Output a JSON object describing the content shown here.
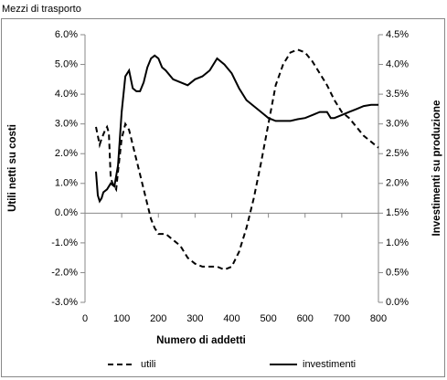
{
  "chart_data": {
    "type": "line",
    "title": "Mezzi di trasporto",
    "x_label": "Numero di addetti",
    "y_label": "Utili netti su costi",
    "y2_label": "Investimenti su produzione",
    "xlim": [
      0,
      800
    ],
    "xticks": [
      0,
      100,
      200,
      300,
      400,
      500,
      600,
      700,
      800
    ],
    "ylim": [
      -3,
      6
    ],
    "yticks": [
      {
        "value": -3,
        "label": "-3.0%"
      },
      {
        "value": -2,
        "label": "-2.0%"
      },
      {
        "value": -1,
        "label": "-1.0%"
      },
      {
        "value": 0,
        "label": "0.0%"
      },
      {
        "value": 1,
        "label": "1.0%"
      },
      {
        "value": 2,
        "label": "2.0%"
      },
      {
        "value": 3,
        "label": "3.0%"
      },
      {
        "value": 4,
        "label": "4.0%"
      },
      {
        "value": 5,
        "label": "5.0%"
      },
      {
        "value": 6,
        "label": "6.0%"
      }
    ],
    "y2lim": [
      0,
      4.5
    ],
    "y2ticks": [
      {
        "value": 0,
        "label": "0.0%"
      },
      {
        "value": 0.5,
        "label": "0.5%"
      },
      {
        "value": 1,
        "label": "1.0%"
      },
      {
        "value": 1.5,
        "label": "1.5%"
      },
      {
        "value": 2,
        "label": "2.0%"
      },
      {
        "value": 2.5,
        "label": "2.5%"
      },
      {
        "value": 3,
        "label": "3.0%"
      },
      {
        "value": 3.5,
        "label": "3.5%"
      },
      {
        "value": 4,
        "label": "4.0%"
      },
      {
        "value": 4.5,
        "label": "4.5%"
      }
    ],
    "legend": "bottom",
    "series": [
      {
        "name": "utili",
        "color": "#000000",
        "line_style": "dashed",
        "x": [
          30,
          35,
          40,
          45,
          55,
          60,
          65,
          70,
          75,
          85,
          90,
          100,
          110,
          120,
          130,
          140,
          150,
          160,
          170,
          180,
          190,
          200,
          220,
          240,
          260,
          280,
          300,
          320,
          340,
          360,
          380,
          400,
          420,
          440,
          460,
          480,
          500,
          520,
          540,
          560,
          580,
          600,
          620,
          640,
          660,
          680,
          700,
          720,
          740,
          760,
          780,
          800
        ],
        "values": [
          2.9,
          2.6,
          2.3,
          2.5,
          2.8,
          2.9,
          2.7,
          1.2,
          1.0,
          0.8,
          1.4,
          2.5,
          3.0,
          2.8,
          2.3,
          1.8,
          1.3,
          0.8,
          0.3,
          -0.2,
          -0.5,
          -0.7,
          -0.7,
          -0.9,
          -1.1,
          -1.5,
          -1.7,
          -1.8,
          -1.8,
          -1.8,
          -1.9,
          -1.8,
          -1.3,
          -0.5,
          0.5,
          1.7,
          3.0,
          4.3,
          5.0,
          5.4,
          5.5,
          5.4,
          5.1,
          4.7,
          4.3,
          3.8,
          3.4,
          3.2,
          2.9,
          2.6,
          2.4,
          2.2
        ]
      },
      {
        "name": "investimenti",
        "color": "#000000",
        "line_style": "solid",
        "axis": "y2",
        "x": [
          30,
          35,
          40,
          45,
          50,
          60,
          70,
          80,
          90,
          100,
          110,
          120,
          130,
          140,
          150,
          160,
          170,
          180,
          190,
          200,
          210,
          220,
          240,
          260,
          280,
          300,
          320,
          340,
          350,
          360,
          380,
          400,
          420,
          440,
          460,
          480,
          500,
          520,
          540,
          560,
          580,
          600,
          620,
          640,
          660,
          670,
          680,
          700,
          720,
          740,
          760,
          780,
          800
        ],
        "values": [
          2.2,
          1.8,
          1.7,
          1.75,
          1.85,
          1.9,
          2.0,
          1.95,
          2.3,
          3.2,
          3.8,
          3.9,
          3.6,
          3.55,
          3.55,
          3.7,
          3.95,
          4.1,
          4.15,
          4.1,
          3.95,
          3.9,
          3.75,
          3.7,
          3.65,
          3.75,
          3.8,
          3.9,
          4.0,
          4.1,
          4.0,
          3.85,
          3.6,
          3.4,
          3.3,
          3.2,
          3.1,
          3.05,
          3.05,
          3.05,
          3.08,
          3.1,
          3.15,
          3.2,
          3.2,
          3.1,
          3.1,
          3.15,
          3.2,
          3.25,
          3.3,
          3.32,
          3.32
        ]
      }
    ]
  }
}
